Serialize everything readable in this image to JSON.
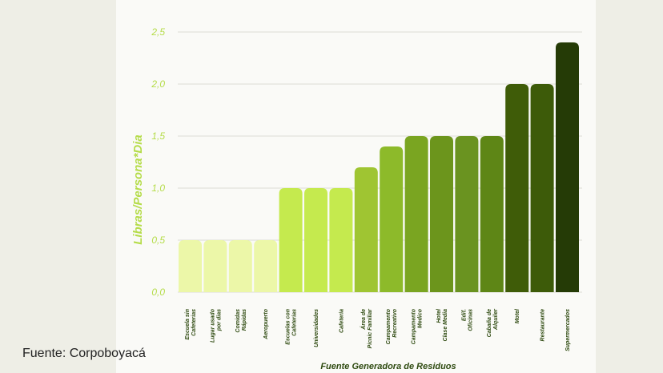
{
  "chart_data": {
    "type": "bar",
    "title": "",
    "ylabel": "Libras/Persona*Dia",
    "xlabel": "Fuente Generadora de Residuos",
    "ylim": [
      0,
      2.5
    ],
    "yticks": [
      "0,0",
      "0,5",
      "1,0",
      "1,5",
      "2,0",
      "2,5"
    ],
    "grid": true,
    "categories": [
      [
        "Escuela sin",
        "Cafeterias"
      ],
      [
        "Lugar usado",
        "por dias"
      ],
      [
        "Comidas",
        "Rápidas"
      ],
      [
        "Aeropuerto"
      ],
      [
        "Escuelas con",
        "Cafeterias"
      ],
      [
        "Universidades"
      ],
      [
        "Cafeteria"
      ],
      [
        "Área de",
        "Picnic Familiar"
      ],
      [
        "Campamento",
        "Recreativo"
      ],
      [
        "Campamento",
        "Medico"
      ],
      [
        "Hotel",
        "Clase Media"
      ],
      [
        "Edif.",
        "Oficinas"
      ],
      [
        "Cabaña de",
        "Alquiler"
      ],
      [
        "Motel"
      ],
      [
        "Restaurante"
      ],
      [
        "Supermercados"
      ]
    ],
    "values": [
      0.5,
      0.5,
      0.5,
      0.5,
      1.0,
      1.0,
      1.0,
      1.2,
      1.4,
      1.5,
      1.5,
      1.5,
      1.5,
      2.0,
      2.0,
      2.4
    ],
    "colors": [
      "#ecf7a8",
      "#ecf7a8",
      "#ecf7a8",
      "#ecf7a8",
      "#c5ea4e",
      "#c5ea4e",
      "#c5ea4e",
      "#9fc532",
      "#8dba2a",
      "#7aa521",
      "#6c951c",
      "#6a9320",
      "#5e8616",
      "#3f5c08",
      "#3d5b09",
      "#253b06"
    ]
  },
  "source_text": "Fuente: Corpoboyacá"
}
